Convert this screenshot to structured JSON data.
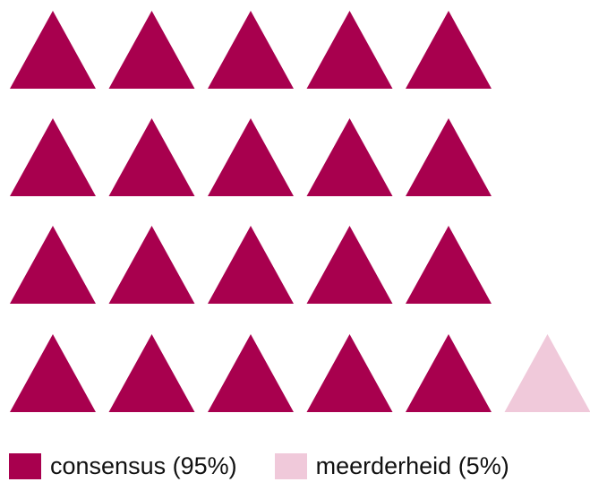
{
  "chart_data": {
    "type": "pictograph",
    "icon": "triangle",
    "grid": {
      "rows": 4,
      "columns": 6
    },
    "series": [
      {
        "name": "consensus",
        "label": "consensus (95%)",
        "percent": 95,
        "count": 20,
        "color": "#a8004e"
      },
      {
        "name": "meerderheid",
        "label": "meerderheid (5%)",
        "percent": 5,
        "count": 1,
        "color": "#f0c9da"
      }
    ],
    "legend_position": "bottom-left"
  }
}
